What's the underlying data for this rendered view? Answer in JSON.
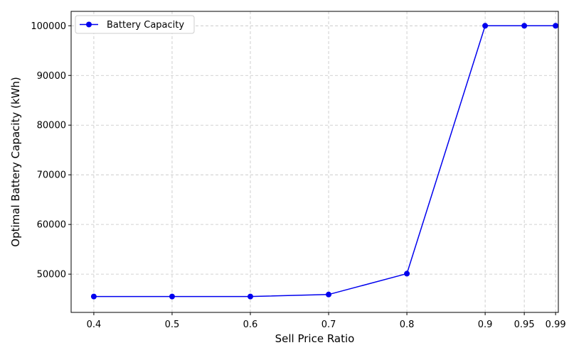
{
  "chart_data": {
    "type": "line",
    "title": "",
    "xlabel": "Sell Price Ratio",
    "ylabel": "Optimal Battery Capacity (kWh)",
    "xlim": [
      0.371,
      0.9935
    ],
    "ylim": [
      42300,
      102900
    ],
    "x_ticks": [
      0.4,
      0.5,
      0.6,
      0.7,
      0.8,
      0.9,
      0.95,
      0.99
    ],
    "x_tick_labels": [
      "0.4",
      "0.5",
      "0.6",
      "0.7",
      "0.8",
      "0.9",
      "0.95",
      "0.99"
    ],
    "y_ticks": [
      50000,
      60000,
      70000,
      80000,
      90000,
      100000
    ],
    "y_tick_labels": [
      "50000",
      "60000",
      "70000",
      "80000",
      "90000",
      "100000"
    ],
    "grid": true,
    "legend_position": "top-left",
    "series": [
      {
        "name": "Battery Capacity",
        "color": "#0000ee",
        "marker": "circle",
        "x": [
          0.4,
          0.5,
          0.6,
          0.7,
          0.8,
          0.9,
          0.95,
          0.99
        ],
        "y": [
          45500,
          45500,
          45500,
          45900,
          50100,
          100000,
          100000,
          100000
        ]
      }
    ]
  }
}
